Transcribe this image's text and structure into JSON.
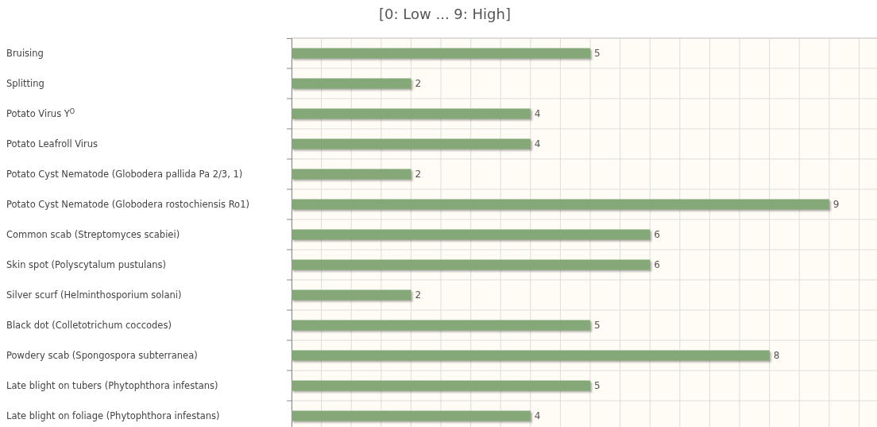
{
  "chart_data": {
    "type": "bar",
    "orientation": "horizontal",
    "title": "[0: Low ... 9: High]",
    "categories": [
      "Bruising",
      "Splitting",
      "Potato Virus Y$^{O}$",
      "Potato Leafroll Virus",
      "Potato Cyst Nematode (Globodera pallida Pa 2/3, 1)",
      "Potato Cyst Nematode (Globodera rostochiensis Ro1)",
      "Common scab (Streptomyces scabiei)",
      "Skin spot (Polyscytalum pustulans)",
      "Silver scurf (Helminthosporium solani)",
      "Black dot (Colletotrichum coccodes)",
      "Powdery scab (Spongospora subterranea)",
      "Late blight on tubers (Phytophthora infestans)",
      "Late blight on foliage (Phytophthora infestans)"
    ],
    "values": [
      5,
      2,
      4,
      4,
      2,
      9,
      6,
      6,
      2,
      5,
      8,
      5,
      4
    ],
    "color": "#84a878",
    "data_labels": true,
    "grid": true,
    "tick_labels": "y",
    "xlim": [
      0,
      9.8
    ],
    "xticks": [
      {
        "value": 0,
        "label": null
      },
      {
        "value": 0.5,
        "label": null
      },
      {
        "value": 1,
        "label": null
      },
      {
        "value": 1.5,
        "label": null
      },
      {
        "value": 2,
        "label": null
      },
      {
        "value": 2.5,
        "label": null
      },
      {
        "value": 3,
        "label": null
      },
      {
        "value": 3.5,
        "label": null
      },
      {
        "value": 4,
        "label": null
      },
      {
        "value": 4.5,
        "label": null
      },
      {
        "value": 5,
        "label": null
      },
      {
        "value": 5.5,
        "label": null
      },
      {
        "value": 6,
        "label": null
      },
      {
        "value": 6.5,
        "label": null
      },
      {
        "value": 7,
        "label": null
      },
      {
        "value": 7.5,
        "label": null
      },
      {
        "value": 8,
        "label": null
      },
      {
        "value": 8.5,
        "label": null
      },
      {
        "value": 9,
        "label": null
      },
      {
        "value": 9.5,
        "label": null
      }
    ]
  }
}
